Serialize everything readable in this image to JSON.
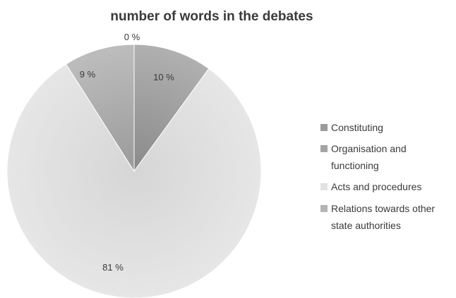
{
  "chart_data": {
    "type": "pie",
    "title": "number of words in the debates",
    "categories": [
      "Constituting",
      "Organisation and functioning",
      "Acts and procedures",
      "Relations towards other state authorities"
    ],
    "legend_lines": [
      [
        "Constituting"
      ],
      [
        "Organisation and",
        "functioning"
      ],
      [
        "Acts and procedures"
      ],
      [
        "Relations towards other",
        "state authorities"
      ]
    ],
    "values": [
      0,
      10,
      81,
      9
    ],
    "data_labels": [
      "0 %",
      "10 %",
      "81 %",
      "9 %"
    ],
    "colors": [
      "#9a9a9a",
      "#a4a4a4",
      "#e2e2e2",
      "#b4b4b4"
    ],
    "legend_position": "right"
  }
}
